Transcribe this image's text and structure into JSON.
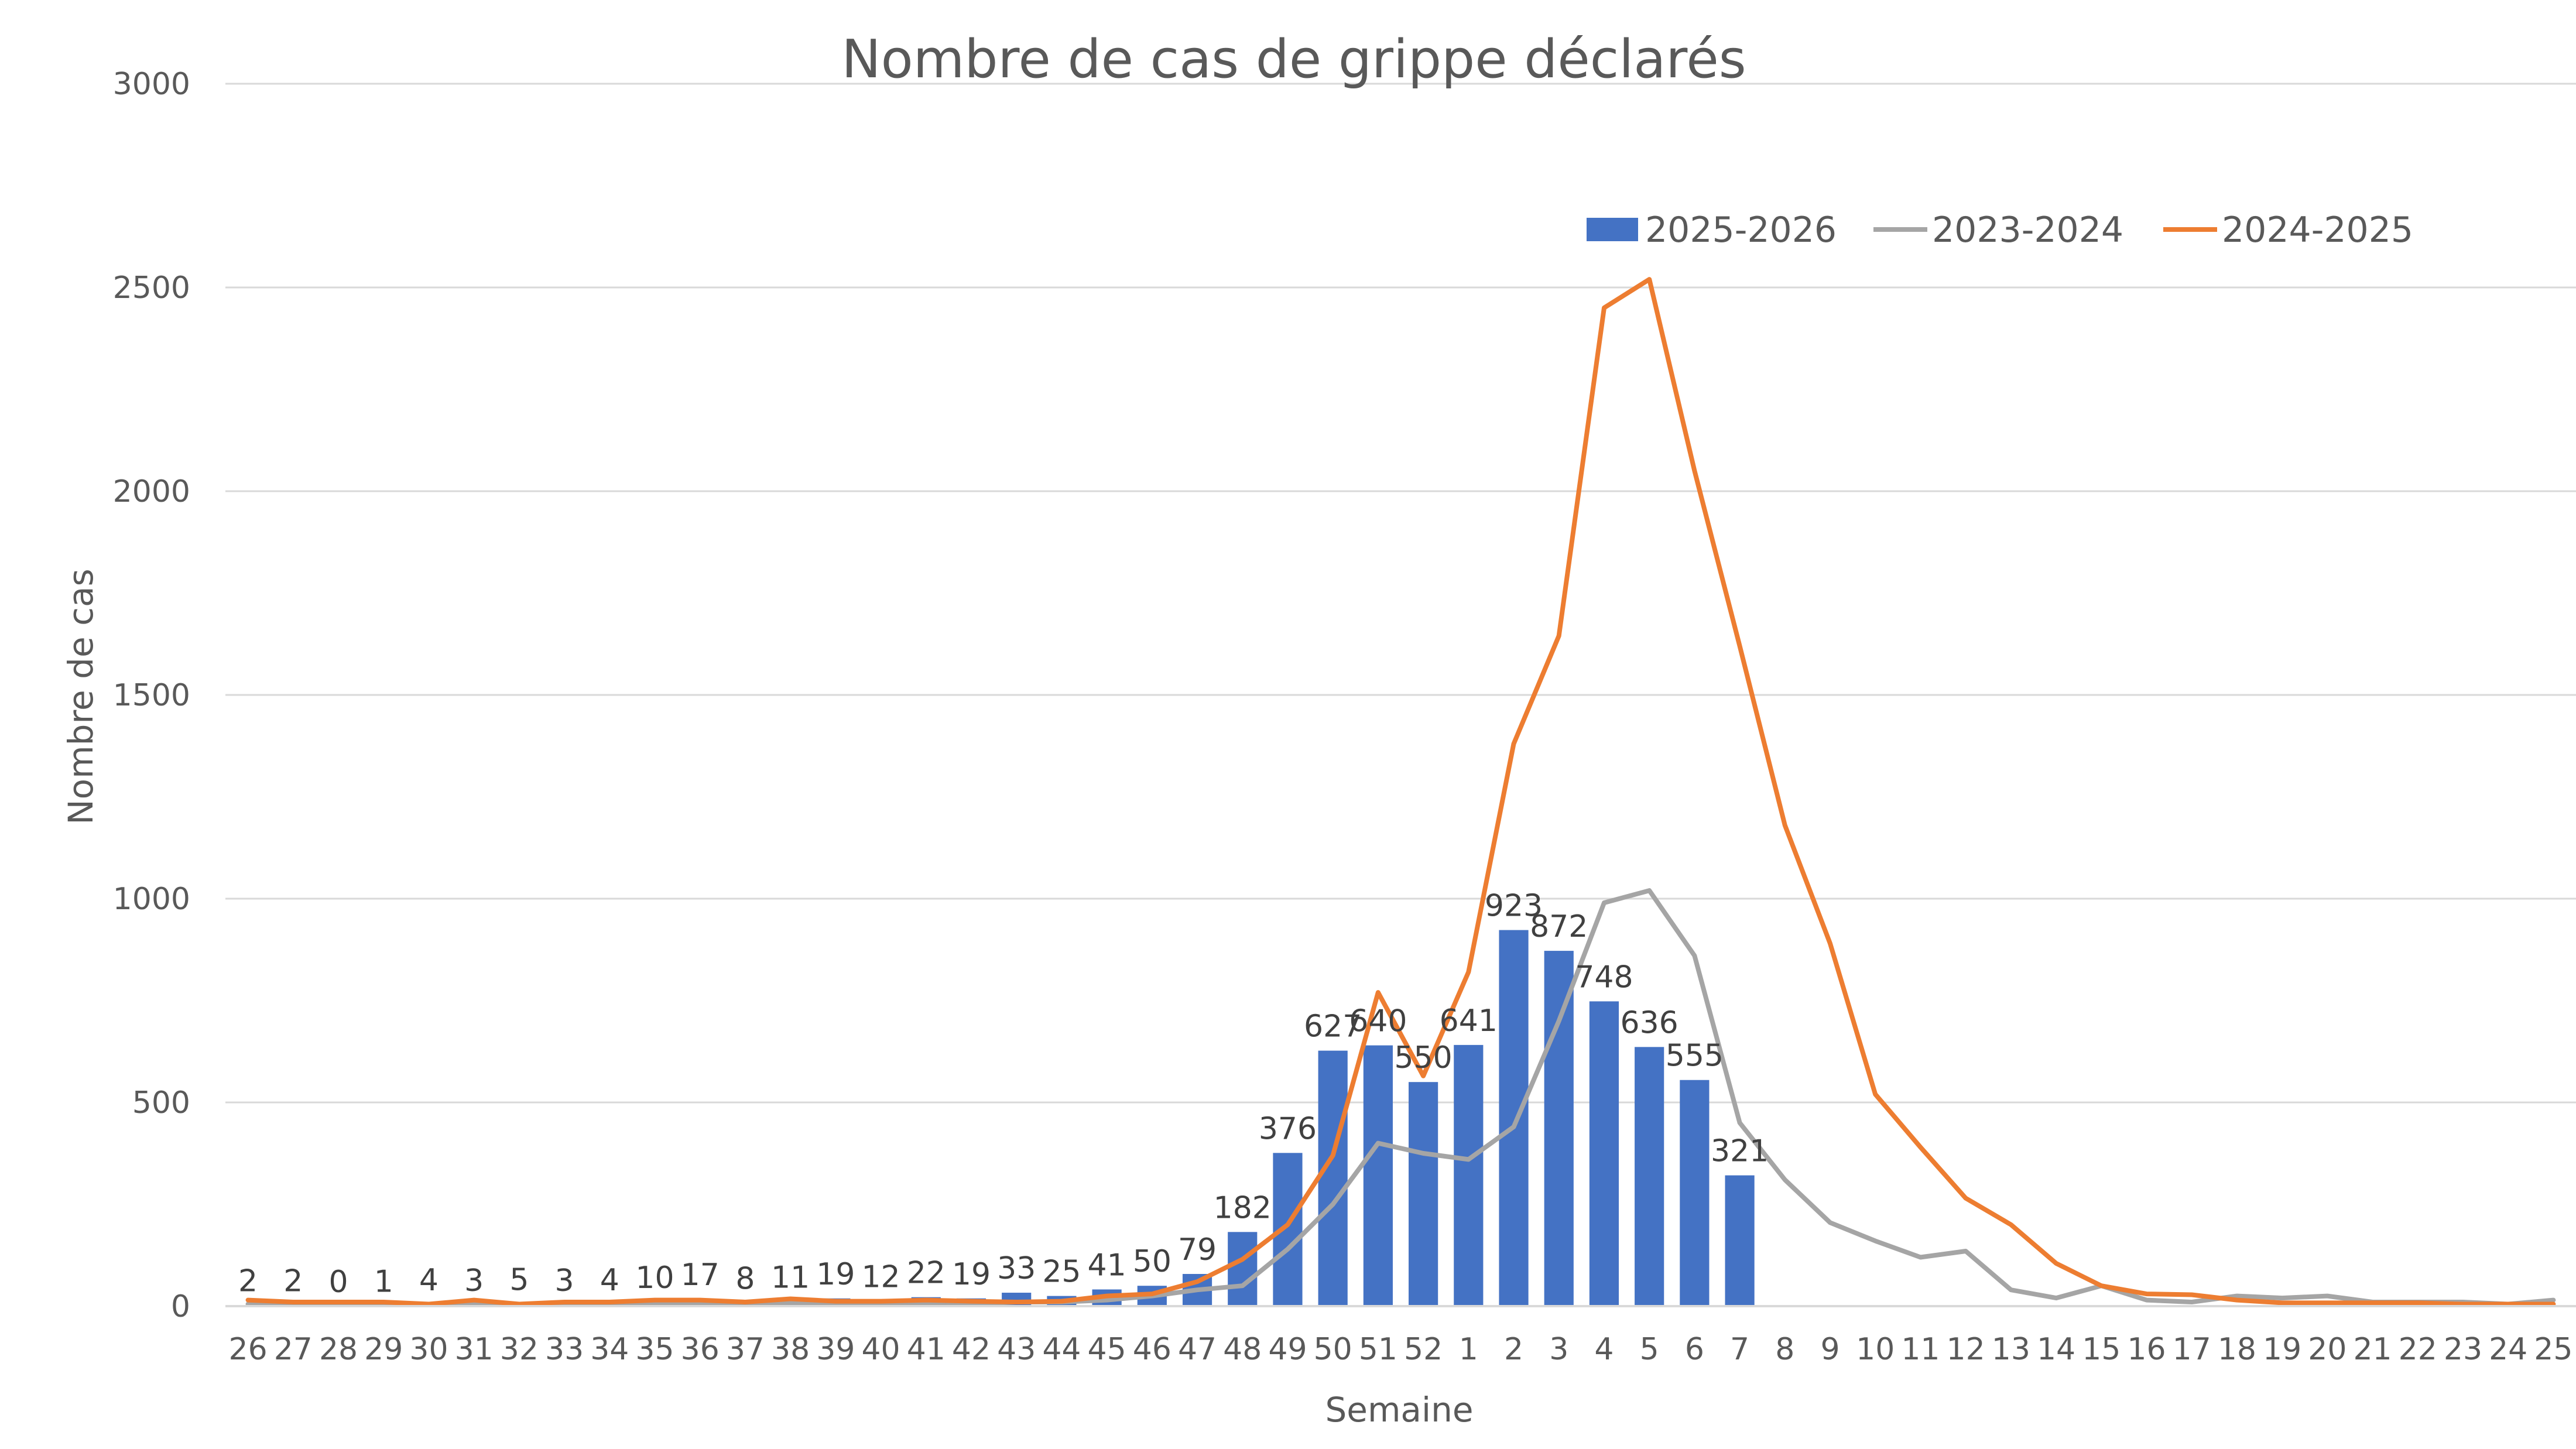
{
  "chart_data": {
    "type": "bar",
    "title": "Nombre de cas de grippe déclarés",
    "xlabel": "Semaine",
    "ylabel": "Nombre de cas",
    "ylim": [
      0,
      3000
    ],
    "yticks": [
      0,
      500,
      1000,
      1500,
      2000,
      2500,
      3000
    ],
    "grid": "horizontal",
    "legend_position": "top-right",
    "categories": [
      "26",
      "27",
      "28",
      "29",
      "30",
      "31",
      "32",
      "33",
      "34",
      "35",
      "36",
      "37",
      "38",
      "39",
      "40",
      "41",
      "42",
      "43",
      "44",
      "45",
      "46",
      "47",
      "48",
      "49",
      "50",
      "51",
      "52",
      "1",
      "2",
      "3",
      "4",
      "5",
      "6",
      "7",
      "8",
      "9",
      "10",
      "11",
      "12",
      "13",
      "14",
      "15",
      "16",
      "17",
      "18",
      "19",
      "20",
      "21",
      "22",
      "23",
      "24",
      "25"
    ],
    "series": [
      {
        "name": "2025-2026",
        "kind": "bar",
        "color": "#4472C4",
        "values": [
          2,
          2,
          0,
          1,
          4,
          3,
          5,
          3,
          4,
          10,
          17,
          8,
          11,
          19,
          12,
          22,
          19,
          33,
          25,
          41,
          50,
          79,
          182,
          376,
          627,
          640,
          550,
          641,
          923,
          872,
          748,
          636,
          555,
          321,
          null,
          null,
          null,
          null,
          null,
          null,
          null,
          null,
          null,
          null,
          null,
          null,
          null,
          null,
          null,
          null,
          null,
          null
        ]
      },
      {
        "name": "2023-2024",
        "kind": "line",
        "color": "#A5A5A5",
        "values": [
          5,
          5,
          5,
          5,
          3,
          5,
          3,
          5,
          5,
          5,
          5,
          5,
          8,
          8,
          5,
          8,
          5,
          10,
          10,
          15,
          25,
          40,
          50,
          140,
          250,
          400,
          375,
          360,
          440,
          700,
          990,
          1020,
          860,
          450,
          310,
          205,
          160,
          120,
          135,
          40,
          20,
          50,
          15,
          10,
          25,
          20,
          25,
          10,
          10,
          10,
          5,
          15
        ]
      },
      {
        "name": "2024-2025",
        "kind": "line",
        "color": "#ED7D31",
        "values": [
          15,
          10,
          10,
          10,
          5,
          15,
          5,
          10,
          10,
          15,
          15,
          10,
          18,
          12,
          12,
          15,
          12,
          10,
          12,
          25,
          30,
          60,
          115,
          200,
          370,
          770,
          565,
          820,
          1380,
          1645,
          2450,
          2520,
          2050,
          1620,
          1180,
          890,
          520,
          390,
          265,
          200,
          105,
          50,
          30,
          28,
          15,
          8,
          8,
          8,
          8,
          5,
          5,
          5
        ]
      }
    ]
  }
}
